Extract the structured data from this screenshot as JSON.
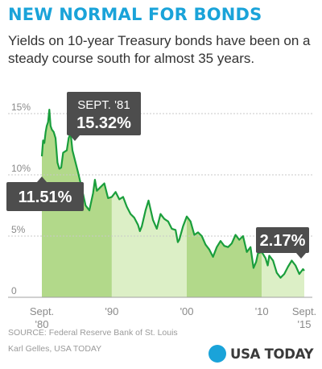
{
  "title": "NEW NORMAL FOR BONDS",
  "subtitle": "Yields on 10-year Treasury bonds have been on a steady course south for almost 35 years.",
  "source_line": "SOURCE: Federal Reserve Bank of St. Louis",
  "credit_line": "Karl Gelles, USA TODAY",
  "logo_text": "USA TODAY",
  "colors": {
    "title": "#1aa3d9",
    "line": "#1a9e3c",
    "band_dark": "#b2d98a",
    "band_light": "#dcefc6",
    "callout": "#4d4d4d",
    "grid": "#c8c8c8",
    "label": "#8a8a8a"
  },
  "chart_data": {
    "type": "line",
    "title": "",
    "xlabel": "",
    "ylabel": "",
    "ylim": [
      0,
      15
    ],
    "y_ticks": [
      {
        "value": 0,
        "label": "0"
      },
      {
        "value": 5,
        "label": "5%"
      },
      {
        "value": 10,
        "label": "10%"
      },
      {
        "value": 15,
        "label": "15%"
      }
    ],
    "x_ticks": [
      {
        "value": 1980.67,
        "label": "Sept.",
        "sublabel": "'80"
      },
      {
        "value": 1990.0,
        "label": "'90",
        "sublabel": ""
      },
      {
        "value": 2000.0,
        "label": "'00",
        "sublabel": ""
      },
      {
        "value": 2010.0,
        "label": "'10",
        "sublabel": ""
      },
      {
        "value": 2015.67,
        "label": "Sept.",
        "sublabel": "'15"
      }
    ],
    "shaded_bands": [
      {
        "from": 1980.67,
        "to": 1990.0,
        "tone": "dark"
      },
      {
        "from": 1990.0,
        "to": 2000.0,
        "tone": "light"
      },
      {
        "from": 2000.0,
        "to": 2010.0,
        "tone": "dark"
      },
      {
        "from": 2010.0,
        "to": 2015.67,
        "tone": "light"
      }
    ],
    "series": [
      {
        "name": "10-year Treasury yield",
        "x": [
          1980.67,
          1980.83,
          1981.0,
          1981.17,
          1981.33,
          1981.5,
          1981.67,
          1981.83,
          1982.0,
          1982.25,
          1982.5,
          1982.75,
          1983.0,
          1983.25,
          1983.5,
          1983.75,
          1984.0,
          1984.25,
          1984.5,
          1984.75,
          1985.0,
          1985.5,
          1986.0,
          1986.5,
          1987.0,
          1987.5,
          1987.75,
          1988.0,
          1988.5,
          1989.0,
          1989.5,
          1990.0,
          1990.5,
          1991.0,
          1991.5,
          1992.0,
          1992.5,
          1993.0,
          1993.5,
          1993.75,
          1994.0,
          1994.5,
          1994.9,
          1995.5,
          1996.0,
          1996.5,
          1997.0,
          1997.5,
          1998.0,
          1998.5,
          1998.8,
          1999.0,
          1999.5,
          2000.0,
          2000.5,
          2001.0,
          2001.5,
          2002.0,
          2002.5,
          2003.0,
          2003.5,
          2004.0,
          2004.5,
          2005.0,
          2005.5,
          2006.0,
          2006.5,
          2007.0,
          2007.5,
          2008.0,
          2008.5,
          2008.9,
          2009.25,
          2009.5,
          2010.0,
          2010.5,
          2010.8,
          2011.0,
          2011.5,
          2012.0,
          2012.5,
          2013.0,
          2013.5,
          2014.0,
          2014.5,
          2015.0,
          2015.5,
          2015.67
        ],
        "y": [
          11.51,
          12.8,
          12.6,
          13.5,
          14.0,
          14.3,
          15.32,
          14.0,
          13.7,
          13.5,
          13.0,
          11.0,
          10.5,
          10.6,
          11.8,
          11.9,
          12.0,
          13.0,
          13.4,
          12.0,
          11.4,
          10.2,
          8.9,
          7.5,
          7.1,
          8.5,
          9.6,
          8.7,
          9.0,
          9.3,
          8.1,
          8.2,
          8.6,
          8.0,
          8.2,
          7.4,
          6.8,
          6.5,
          5.9,
          5.4,
          5.8,
          7.1,
          7.9,
          6.3,
          5.6,
          6.8,
          6.4,
          6.2,
          5.6,
          5.5,
          4.5,
          4.7,
          5.8,
          6.6,
          6.2,
          5.1,
          5.3,
          5.0,
          4.3,
          3.9,
          3.3,
          4.1,
          4.6,
          4.2,
          4.1,
          4.4,
          5.1,
          4.7,
          5.0,
          3.7,
          4.1,
          2.4,
          2.9,
          3.6,
          3.7,
          3.2,
          2.6,
          3.4,
          3.0,
          2.0,
          1.6,
          1.9,
          2.5,
          3.0,
          2.6,
          1.9,
          2.3,
          2.17
        ]
      }
    ],
    "callouts": [
      {
        "line1": "SEPT. '81",
        "line2": "15.32%",
        "x": 1981.67,
        "y": 15.32
      },
      {
        "line1": "",
        "line2": "11.51%",
        "x": 1980.67,
        "y": 11.51
      },
      {
        "line1": "",
        "line2": "2.17%",
        "x": 2015.67,
        "y": 2.17
      }
    ]
  }
}
